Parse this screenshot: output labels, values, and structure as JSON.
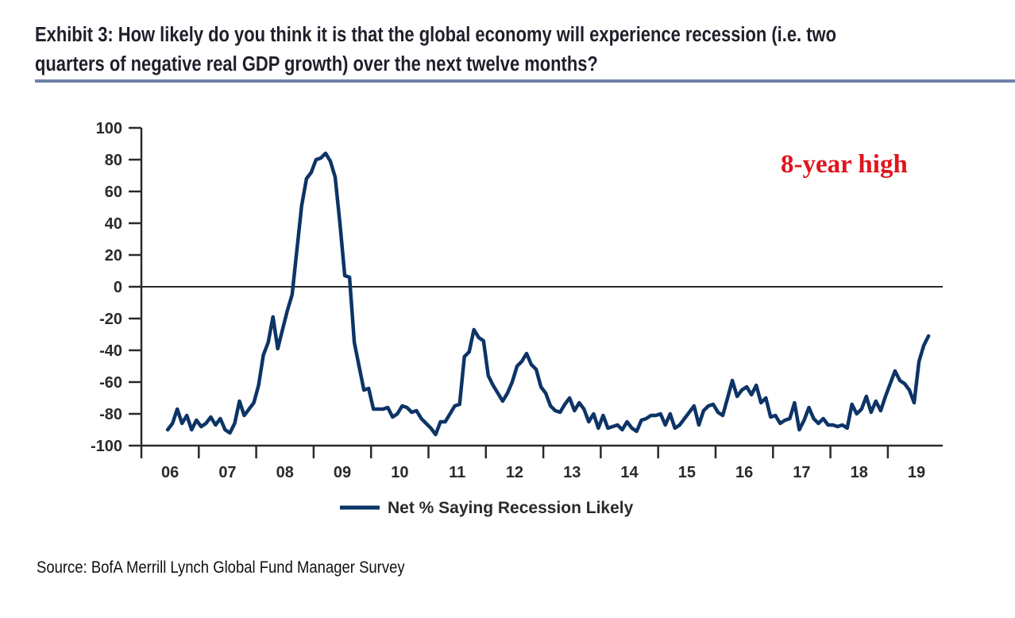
{
  "header": {
    "title_line1": "Exhibit 3: How likely do you think it is that the global economy will experience recession (i.e. two",
    "title_line2": "quarters of negative real GDP growth) over the next twelve months?"
  },
  "footer": {
    "source": "Source: BofA Merrill Lynch Global Fund Manager Survey"
  },
  "colors": {
    "line": "#0d3466",
    "annotation": "#e0141e",
    "title_rule": "#6d82a6",
    "axis": "#2a2a2a"
  },
  "chart_data": {
    "type": "line",
    "title": "How likely do you think it is that the global economy will experience recession over the next twelve months?",
    "xlabel": "",
    "ylabel": "",
    "ylim": [
      -100,
      100
    ],
    "yticks": [
      100,
      80,
      60,
      40,
      20,
      0,
      -20,
      -40,
      -60,
      -80,
      -100
    ],
    "xlim": [
      "2006-01",
      "2019-12"
    ],
    "xtick_labels": [
      "06",
      "07",
      "08",
      "09",
      "10",
      "11",
      "12",
      "13",
      "14",
      "15",
      "16",
      "17",
      "18",
      "19"
    ],
    "zero_line": true,
    "grid": false,
    "legend": {
      "position": "bottom-center",
      "entries": [
        "Net % Saying Recession Likely"
      ]
    },
    "annotation": "8-year high",
    "series": [
      {
        "name": "Net % Saying Recession Likely",
        "start": "2006-06",
        "frequency": "monthly",
        "values": [
          -90,
          -86,
          -77,
          -86,
          -81,
          -90,
          -84,
          -88,
          -86,
          -82,
          -87,
          -83,
          -90,
          -92,
          -86,
          -72,
          -81,
          -77,
          -73,
          -62,
          -43,
          -35,
          -19,
          -39,
          -27,
          -15,
          -5,
          23,
          51,
          68,
          72,
          80,
          81,
          84,
          79,
          69,
          40,
          7,
          6,
          -35,
          -50,
          -65,
          -64,
          -77,
          -77,
          -77,
          -76,
          -82,
          -80,
          -75,
          -76,
          -79,
          -78,
          -83,
          -86,
          -89,
          -93,
          -85,
          -85,
          -80,
          -75,
          -74,
          -44,
          -41,
          -27,
          -32,
          -34,
          -56,
          -62,
          -67,
          -72,
          -67,
          -60,
          -50,
          -47,
          -42,
          -49,
          -52,
          -63,
          -67,
          -75,
          -78,
          -79,
          -74,
          -70,
          -78,
          -73,
          -77,
          -85,
          -80,
          -89,
          -81,
          -89,
          -88,
          -87,
          -90,
          -85,
          -89,
          -91,
          -84,
          -83,
          -81,
          -81,
          -80,
          -87,
          -80,
          -89,
          -87,
          -83,
          -79,
          -75,
          -87,
          -78,
          -75,
          -74,
          -79,
          -81,
          -70,
          -59,
          -69,
          -65,
          -63,
          -68,
          -62,
          -73,
          -70,
          -82,
          -81,
          -86,
          -84,
          -83,
          -73,
          -90,
          -84,
          -76,
          -83,
          -86,
          -83,
          -87,
          -87,
          -88,
          -87,
          -89,
          -74,
          -80,
          -77,
          -69,
          -79,
          -72,
          -78,
          -69,
          -61,
          -53,
          -59,
          -61,
          -65,
          -73,
          -47,
          -37,
          -31
        ]
      }
    ]
  }
}
